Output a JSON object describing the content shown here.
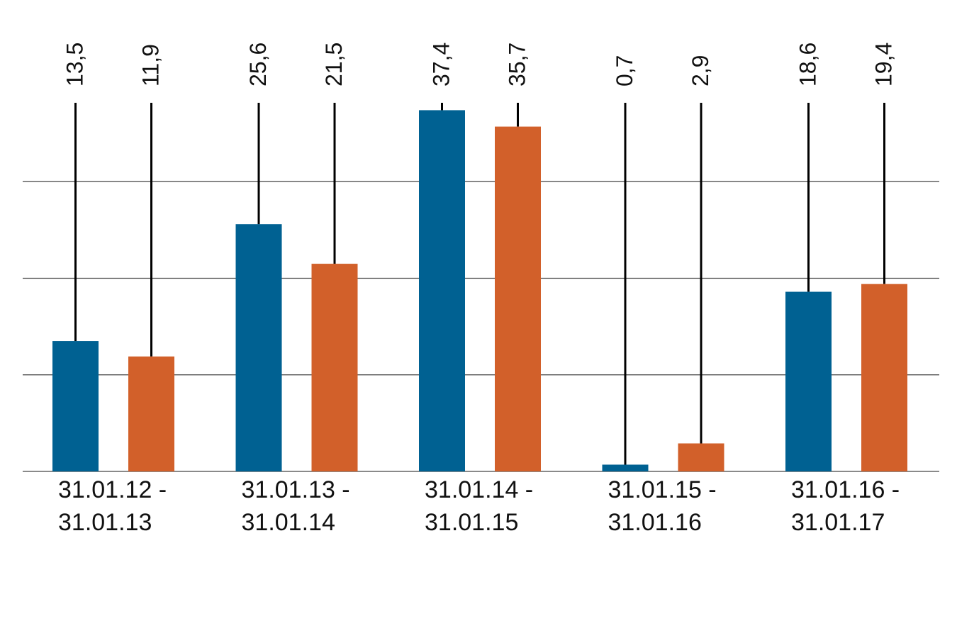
{
  "chart_data": {
    "type": "bar",
    "categories": [
      [
        "31.01.12 -",
        "31.01.13"
      ],
      [
        "31.01.13 -",
        "31.01.14"
      ],
      [
        "31.01.14 -",
        "31.01.15"
      ],
      [
        "31.01.15 -",
        "31.01.16"
      ],
      [
        "31.01.16 -",
        "31.01.17"
      ]
    ],
    "series": [
      {
        "values": [
          13.5,
          25.6,
          37.4,
          0.7,
          18.6
        ],
        "labels": [
          "13,5",
          "25,6",
          "37,4",
          "0,7",
          "18,6"
        ],
        "color": "#006192"
      },
      {
        "values": [
          11.9,
          21.5,
          35.7,
          2.9,
          19.4
        ],
        "labels": [
          "11,9",
          "21,5",
          "35,7",
          "2,9",
          "19,4"
        ],
        "color": "#D2602A"
      }
    ],
    "ylim": [
      0,
      40
    ],
    "gridlines": [
      10,
      20,
      30
    ],
    "grid": true,
    "legend": "none",
    "title": "",
    "xlabel": "",
    "ylabel": ""
  }
}
